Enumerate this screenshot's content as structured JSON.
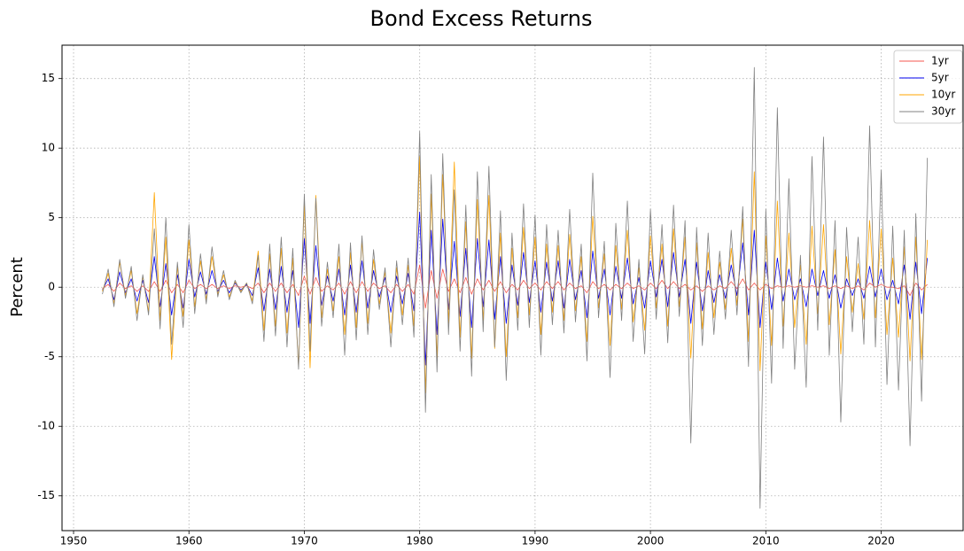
{
  "chart_data": {
    "type": "line",
    "title": "Bond Excess Returns",
    "ylabel": "Percent",
    "x": [
      1952.5,
      1953,
      1953.5,
      1954,
      1954.5,
      1955,
      1955.5,
      1956,
      1956.5,
      1957,
      1957.5,
      1958,
      1958.5,
      1959,
      1959.5,
      1960,
      1960.5,
      1961,
      1961.5,
      1962,
      1962.5,
      1963,
      1963.5,
      1964,
      1964.5,
      1965,
      1965.5,
      1966,
      1966.5,
      1967,
      1967.5,
      1968,
      1968.5,
      1969,
      1969.5,
      1970,
      1970.5,
      1971,
      1971.5,
      1972,
      1972.5,
      1973,
      1973.5,
      1974,
      1974.5,
      1975,
      1975.5,
      1976,
      1976.5,
      1977,
      1977.5,
      1978,
      1978.5,
      1979,
      1979.5,
      1980,
      1980.5,
      1981,
      1981.5,
      1982,
      1982.5,
      1983,
      1983.5,
      1984,
      1984.5,
      1985,
      1985.5,
      1986,
      1986.5,
      1987,
      1987.5,
      1988,
      1988.5,
      1989,
      1989.5,
      1990,
      1990.5,
      1991,
      1991.5,
      1992,
      1992.5,
      1993,
      1993.5,
      1994,
      1994.5,
      1995,
      1995.5,
      1996,
      1996.5,
      1997,
      1997.5,
      1998,
      1998.5,
      1999,
      1999.5,
      2000,
      2000.5,
      2001,
      2001.5,
      2002,
      2002.5,
      2003,
      2003.5,
      2004,
      2004.5,
      2005,
      2005.5,
      2006,
      2006.5,
      2007,
      2007.5,
      2008,
      2008.5,
      2009,
      2009.5,
      2010,
      2010.5,
      2011,
      2011.5,
      2012,
      2012.5,
      2013,
      2013.5,
      2014,
      2014.5,
      2015,
      2015.5,
      2016,
      2016.5,
      2017,
      2017.5,
      2018,
      2018.5,
      2019,
      2019.5,
      2020,
      2020.5,
      2021,
      2021.5,
      2022,
      2022.5,
      2023,
      2023.5,
      2024
    ],
    "series": [
      {
        "name": "1yr",
        "color": "#f4574f",
        "values": [
          -0.1,
          0.2,
          -0.3,
          0.3,
          -0.1,
          0.1,
          -0.3,
          0.1,
          -0.3,
          0.4,
          -0.3,
          0.5,
          -0.4,
          0.2,
          -0.4,
          0.5,
          -0.1,
          0.2,
          -0.1,
          0.2,
          -0.1,
          0.1,
          -0.1,
          0.1,
          0.0,
          0.1,
          -0.1,
          0.3,
          -0.4,
          0.3,
          -0.3,
          0.3,
          -0.4,
          0.2,
          -0.6,
          0.8,
          -0.5,
          0.7,
          -0.3,
          0.1,
          -0.2,
          0.3,
          -0.5,
          0.4,
          -0.4,
          0.4,
          -0.3,
          0.3,
          -0.1,
          0.1,
          -0.4,
          0.2,
          -0.3,
          0.2,
          -0.5,
          1.6,
          -1.5,
          1.2,
          -0.8,
          1.3,
          -0.3,
          0.6,
          -0.4,
          0.7,
          -0.5,
          0.6,
          -0.2,
          0.5,
          -0.3,
          0.4,
          -0.4,
          0.2,
          -0.2,
          0.5,
          -0.1,
          0.3,
          -0.2,
          0.4,
          -0.1,
          0.4,
          -0.2,
          0.3,
          -0.1,
          0.1,
          -0.4,
          0.4,
          -0.1,
          0.2,
          -0.2,
          0.2,
          -0.1,
          0.3,
          -0.1,
          0.1,
          -0.2,
          0.3,
          -0.1,
          0.5,
          -0.1,
          0.4,
          -0.1,
          0.2,
          -0.2,
          0.1,
          -0.3,
          0.1,
          -0.2,
          0.1,
          -0.1,
          0.4,
          -0.1,
          0.6,
          -0.2,
          0.3,
          -0.2,
          0.2,
          -0.1,
          0.1,
          0.0,
          0.1,
          0.0,
          0.1,
          0.0,
          0.1,
          0.0,
          0.1,
          -0.1,
          0.1,
          -0.1,
          0.1,
          -0.1,
          0.1,
          -0.2,
          0.3,
          0.0,
          0.2,
          0.0,
          0.0,
          -0.1,
          0.1,
          -0.6,
          0.3,
          -0.2,
          0.2
        ]
      },
      {
        "name": "5yr",
        "color": "#0000ee",
        "values": [
          -0.2,
          0.6,
          -0.9,
          1.1,
          -0.4,
          0.6,
          -1.0,
          0.5,
          -1.1,
          2.2,
          -1.4,
          1.7,
          -2.0,
          0.9,
          -1.5,
          2.0,
          -0.7,
          1.1,
          -0.5,
          1.2,
          -0.3,
          0.5,
          -0.4,
          0.3,
          -0.2,
          0.2,
          -0.6,
          1.4,
          -1.7,
          1.3,
          -1.6,
          1.5,
          -1.8,
          1.2,
          -2.9,
          3.5,
          -2.6,
          3.0,
          -1.3,
          0.8,
          -1.0,
          1.3,
          -2.0,
          1.6,
          -1.8,
          1.9,
          -1.5,
          1.2,
          -0.7,
          0.7,
          -1.8,
          0.8,
          -1.2,
          1.0,
          -1.7,
          5.4,
          -5.6,
          4.1,
          -3.4,
          4.9,
          -1.6,
          3.3,
          -2.1,
          2.8,
          -2.9,
          3.5,
          -1.4,
          3.4,
          -2.3,
          2.2,
          -2.6,
          1.6,
          -1.3,
          2.5,
          -1.1,
          1.9,
          -1.8,
          1.8,
          -1.0,
          1.9,
          -1.5,
          2.0,
          -0.9,
          1.2,
          -2.2,
          2.6,
          -0.8,
          1.3,
          -2.0,
          1.5,
          -0.8,
          2.1,
          -1.2,
          0.7,
          -1.5,
          1.9,
          -0.7,
          2.0,
          -1.4,
          2.5,
          -0.7,
          2.0,
          -2.6,
          1.8,
          -1.7,
          1.2,
          -1.1,
          0.9,
          -0.8,
          1.6,
          -0.6,
          3.2,
          -2.0,
          4.1,
          -2.9,
          1.8,
          -1.6,
          2.1,
          -1.0,
          1.3,
          -0.9,
          0.6,
          -1.4,
          1.3,
          -0.6,
          1.2,
          -0.8,
          0.9,
          -1.5,
          0.6,
          -0.6,
          0.6,
          -0.8,
          1.5,
          -0.7,
          1.3,
          -0.9,
          0.5,
          -1.2,
          1.6,
          -2.3,
          1.8,
          -1.9,
          2.1
        ]
      },
      {
        "name": "10yr",
        "color": "#ffa500",
        "values": [
          -0.3,
          1.0,
          -1.2,
          1.8,
          -0.6,
          1.2,
          -1.9,
          0.8,
          -1.8,
          6.8,
          -2.4,
          3.6,
          -5.2,
          1.5,
          -2.1,
          3.4,
          -1.4,
          1.9,
          -0.9,
          2.2,
          -0.5,
          0.9,
          -0.7,
          0.4,
          -0.3,
          0.3,
          -1.0,
          2.6,
          -3.1,
          2.4,
          -2.8,
          2.8,
          -3.3,
          2.1,
          -5.7,
          6.1,
          -5.8,
          6.6,
          -2.2,
          1.3,
          -1.7,
          2.2,
          -3.4,
          2.5,
          -2.9,
          3.3,
          -2.6,
          2.0,
          -1.2,
          1.1,
          -3.3,
          1.4,
          -2.0,
          1.6,
          -2.8,
          9.4,
          -7.6,
          6.7,
          -5.1,
          8.1,
          -2.6,
          9.0,
          -3.6,
          4.7,
          -5.1,
          6.3,
          -2.4,
          6.6,
          -4.4,
          3.9,
          -5.0,
          2.8,
          -2.2,
          4.3,
          -2.0,
          3.6,
          -3.4,
          3.1,
          -1.8,
          3.0,
          -2.4,
          3.8,
          -1.7,
          2.2,
          -3.9,
          5.1,
          -1.5,
          2.4,
          -4.2,
          3.0,
          -1.6,
          4.1,
          -2.5,
          1.4,
          -3.1,
          3.7,
          -1.5,
          3.1,
          -2.8,
          4.2,
          -1.4,
          3.6,
          -5.1,
          3.2,
          -3.0,
          2.5,
          -2.2,
          1.8,
          -1.6,
          2.8,
          -1.3,
          4.9,
          -3.9,
          8.3,
          -6.0,
          3.7,
          -4.2,
          6.2,
          -2.8,
          3.9,
          -2.9,
          1.6,
          -4.1,
          4.4,
          -1.9,
          4.5,
          -2.7,
          2.7,
          -4.8,
          2.2,
          -1.8,
          1.7,
          -2.3,
          4.8,
          -2.2,
          4.2,
          -3.4,
          2.1,
          -3.6,
          2.9,
          -5.3,
          3.6,
          -5.2,
          3.4
        ]
      },
      {
        "name": "30yr",
        "color": "#808080",
        "values": [
          -0.5,
          1.3,
          -1.4,
          2.0,
          -0.8,
          1.5,
          -2.4,
          0.9,
          -2.0,
          4.2,
          -3.0,
          5.0,
          -4.1,
          1.8,
          -2.9,
          4.5,
          -1.9,
          2.4,
          -1.2,
          2.9,
          -0.7,
          1.2,
          -0.9,
          0.5,
          -0.4,
          0.3,
          -1.2,
          2.3,
          -3.9,
          3.1,
          -3.5,
          3.6,
          -4.3,
          2.8,
          -5.9,
          6.7,
          -4.6,
          6.4,
          -2.8,
          1.8,
          -2.2,
          3.1,
          -4.9,
          3.2,
          -3.8,
          3.7,
          -3.4,
          2.7,
          -1.6,
          1.4,
          -4.3,
          1.9,
          -2.7,
          2.1,
          -3.6,
          11.2,
          -9.0,
          8.1,
          -6.1,
          9.6,
          -3.4,
          7.0,
          -4.6,
          5.9,
          -6.4,
          8.3,
          -3.2,
          8.7,
          -4.3,
          5.5,
          -6.7,
          3.9,
          -3.1,
          6.0,
          -2.9,
          5.2,
          -4.9,
          4.5,
          -2.7,
          4.1,
          -3.3,
          5.6,
          -2.5,
          3.1,
          -5.3,
          8.2,
          -2.2,
          3.3,
          -6.5,
          4.6,
          -2.4,
          6.2,
          -3.9,
          2.0,
          -4.8,
          5.6,
          -2.3,
          4.5,
          -4.0,
          5.9,
          -2.1,
          4.8,
          -11.2,
          4.3,
          -4.2,
          3.9,
          -3.4,
          2.6,
          -2.3,
          4.1,
          -2.0,
          5.8,
          -5.7,
          15.8,
          -15.9,
          5.6,
          -6.9,
          12.9,
          -4.4,
          7.8,
          -5.9,
          2.3,
          -7.2,
          9.4,
          -3.1,
          10.8,
          -4.9,
          4.8,
          -9.7,
          4.3,
          -3.2,
          3.6,
          -4.1,
          11.6,
          -4.3,
          8.4,
          -7.0,
          4.4,
          -7.4,
          4.1,
          -11.4,
          5.3,
          -8.2,
          9.3
        ]
      }
    ],
    "xlim": [
      1949,
      2027.1
    ],
    "ylim": [
      -17.5,
      17.4
    ],
    "xticks": [
      1950,
      1960,
      1970,
      1980,
      1990,
      2000,
      2010,
      2020
    ],
    "yticks": [
      -15,
      -10,
      -5,
      0,
      5,
      10,
      15
    ],
    "grid": true,
    "legend": "upper right"
  }
}
